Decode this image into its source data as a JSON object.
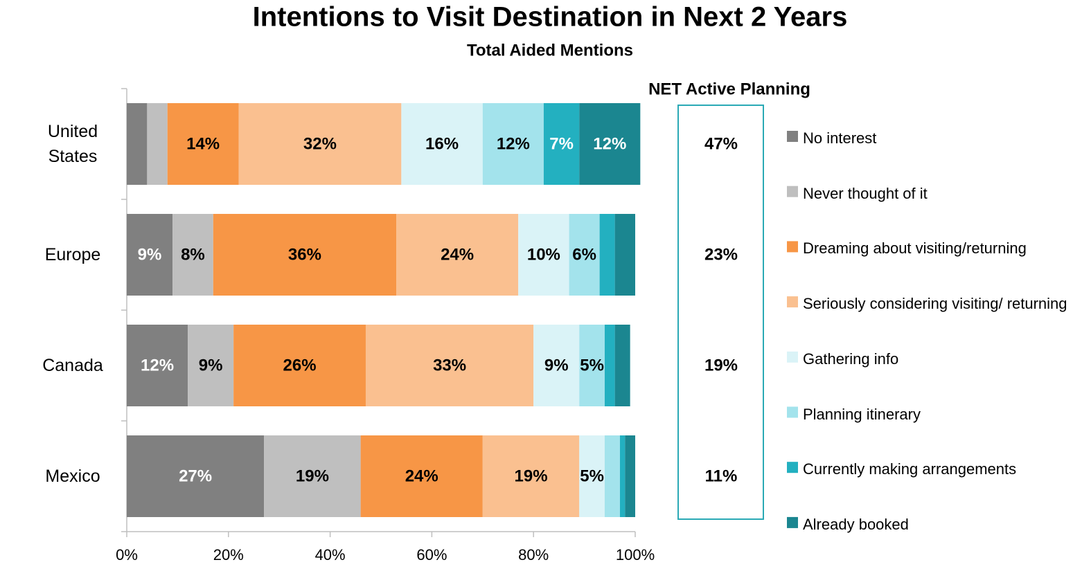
{
  "chart_data": {
    "type": "stacked_barh",
    "title": "Intentions to Visit Destination in Next 2 Years",
    "subtitle": "Total Aided Mentions",
    "categories": [
      "United States",
      "Europe",
      "Canada",
      "Mexico"
    ],
    "series": [
      {
        "name": "No interest",
        "color": "#808080",
        "label_color": "#ffffff",
        "values": [
          4,
          9,
          12,
          27
        ],
        "value_labels": [
          null,
          "9%",
          "12%",
          "27%"
        ]
      },
      {
        "name": "Never thought of it",
        "color": "#bfbfbf",
        "label_color": "#000000",
        "values": [
          4,
          8,
          9,
          19
        ],
        "value_labels": [
          null,
          "8%",
          "9%",
          "19%"
        ]
      },
      {
        "name": "Dreaming about visiting/returning",
        "color": "#f79646",
        "label_color": "#000000",
        "values": [
          14,
          36,
          26,
          24
        ],
        "value_labels": [
          "14%",
          "36%",
          "26%",
          "24%"
        ]
      },
      {
        "name": "Seriously considering visiting/ returning",
        "color": "#fac090",
        "label_color": "#000000",
        "values": [
          32,
          24,
          33,
          19
        ],
        "value_labels": [
          "32%",
          "24%",
          "33%",
          "19%"
        ]
      },
      {
        "name": "Gathering info",
        "color": "#daf3f7",
        "label_color": "#000000",
        "values": [
          16,
          10,
          9,
          5
        ],
        "value_labels": [
          "16%",
          "10%",
          "9%",
          "5%"
        ]
      },
      {
        "name": "Planning itinerary",
        "color": "#a3e3ec",
        "label_color": "#000000",
        "values": [
          12,
          6,
          5,
          3
        ],
        "value_labels": [
          "12%",
          "6%",
          "5%",
          null
        ]
      },
      {
        "name": "Currently making arrangements",
        "color": "#23b0c0",
        "label_color": "#ffffff",
        "values": [
          7,
          3,
          2,
          1
        ],
        "value_labels": [
          "7%",
          null,
          null,
          null
        ]
      },
      {
        "name": "Already booked",
        "color": "#1b8690",
        "label_color": "#ffffff",
        "values": [
          12,
          4,
          3,
          2
        ],
        "value_labels": [
          "12%",
          null,
          null,
          null
        ]
      }
    ],
    "xlim": [
      0,
      100
    ],
    "xticks": [
      {
        "value": 0,
        "label": "0%"
      },
      {
        "value": 20,
        "label": "20%"
      },
      {
        "value": 40,
        "label": "40%"
      },
      {
        "value": 60,
        "label": "60%"
      },
      {
        "value": 80,
        "label": "80%"
      },
      {
        "value": 100,
        "label": "100%"
      }
    ],
    "legend": "right",
    "net_active_planning": {
      "title": "NET Active Planning",
      "color": "#2aa9b5",
      "values": [
        47,
        23,
        19,
        11
      ],
      "value_labels": [
        "47%",
        "23%",
        "19%",
        "11%"
      ]
    }
  }
}
